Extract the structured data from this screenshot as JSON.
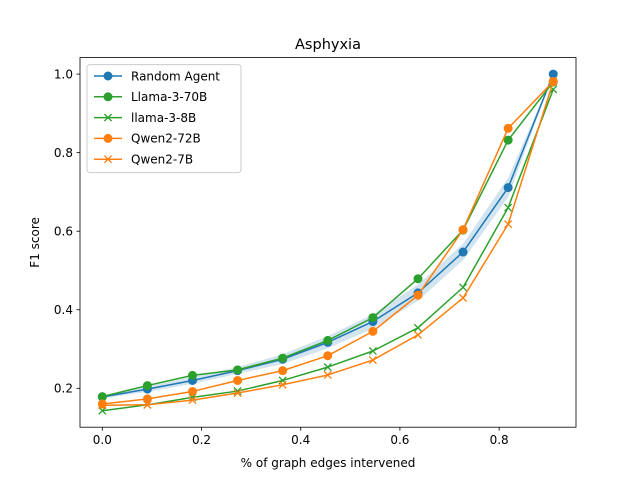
{
  "chart_data": {
    "type": "line",
    "title": "Asphyxia",
    "xlabel": "% of graph edges intervened",
    "ylabel": "F1 score",
    "xlim": [
      -0.045,
      0.955
    ],
    "ylim": [
      0.101,
      1.042
    ],
    "xticks": [
      0.0,
      0.2,
      0.4,
      0.6,
      0.8
    ],
    "xtick_labels": [
      "0.0",
      "0.2",
      "0.4",
      "0.6",
      "0.8"
    ],
    "yticks": [
      0.2,
      0.4,
      0.6,
      0.8,
      1.0
    ],
    "ytick_labels": [
      "0.2",
      "0.4",
      "0.6",
      "0.8",
      "1.0"
    ],
    "grid": false,
    "legend_position": "top-left",
    "x": [
      0.0,
      0.0909,
      0.1818,
      0.2727,
      0.3636,
      0.4545,
      0.5455,
      0.6364,
      0.7273,
      0.8182,
      0.9091
    ],
    "series": [
      {
        "name": "Random Agent",
        "color": "#1f77b4",
        "marker": "circle",
        "values": [
          0.178,
          0.198,
          0.22,
          0.245,
          0.274,
          0.317,
          0.37,
          0.443,
          0.547,
          0.711,
          1.0
        ],
        "band_lower": [
          0.174,
          0.191,
          0.211,
          0.237,
          0.262,
          0.302,
          0.352,
          0.423,
          0.526,
          0.686,
          1.0
        ],
        "band_upper": [
          0.182,
          0.205,
          0.229,
          0.254,
          0.287,
          0.333,
          0.389,
          0.464,
          0.568,
          0.736,
          1.0
        ]
      },
      {
        "name": "Llama-3-70B",
        "color": "#2ca02c",
        "marker": "circle",
        "values": [
          0.179,
          0.207,
          0.233,
          0.247,
          0.277,
          0.322,
          0.38,
          0.479,
          0.603,
          0.832,
          0.98
        ]
      },
      {
        "name": "llama-3-8B",
        "color": "#2ca02c",
        "marker": "x",
        "values": [
          0.143,
          0.158,
          0.177,
          0.193,
          0.22,
          0.254,
          0.295,
          0.354,
          0.457,
          0.66,
          0.961
        ]
      },
      {
        "name": "Qwen2-72B",
        "color": "#ff7f0e",
        "marker": "circle",
        "values": [
          0.16,
          0.173,
          0.192,
          0.22,
          0.245,
          0.283,
          0.345,
          0.437,
          0.604,
          0.862,
          0.981
        ]
      },
      {
        "name": "Qwen2-7B",
        "color": "#ff7f0e",
        "marker": "x",
        "values": [
          0.157,
          0.158,
          0.17,
          0.188,
          0.209,
          0.234,
          0.272,
          0.336,
          0.43,
          0.618,
          0.981
        ]
      }
    ]
  }
}
